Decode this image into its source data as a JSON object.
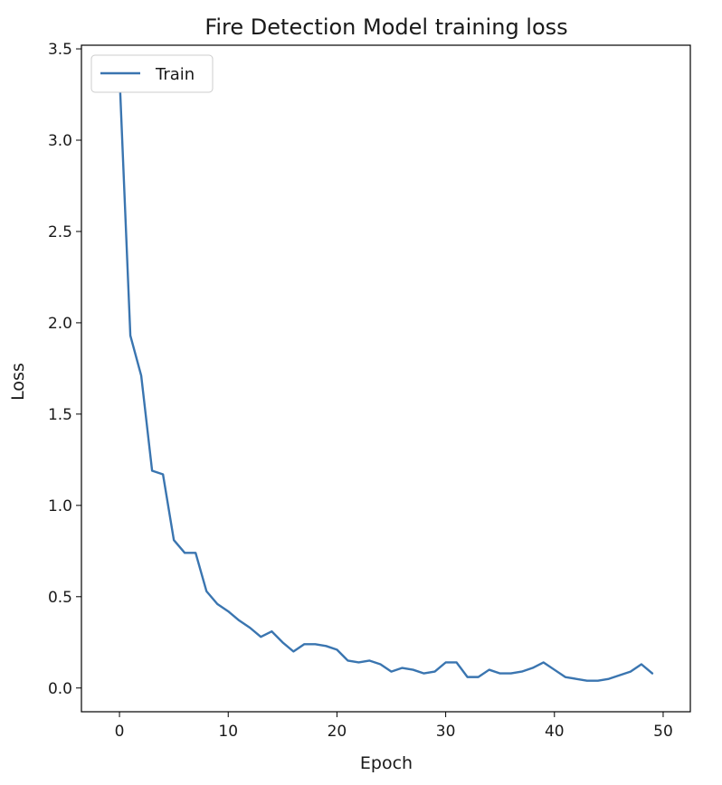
{
  "chart_data": {
    "type": "line",
    "title": "Fire Detection Model training loss",
    "xlabel": "Epoch",
    "ylabel": "Loss",
    "xlim": [
      -3.5,
      52.5
    ],
    "ylim": [
      -0.13,
      3.52
    ],
    "xticks": [
      0,
      10,
      20,
      30,
      40,
      50
    ],
    "yticks": [
      0.0,
      0.5,
      1.0,
      1.5,
      2.0,
      2.5,
      3.0,
      3.5
    ],
    "xtick_labels": [
      "0",
      "10",
      "20",
      "30",
      "40",
      "50"
    ],
    "ytick_labels": [
      "0.0",
      "0.5",
      "1.0",
      "1.5",
      "2.0",
      "2.5",
      "3.0",
      "3.5"
    ],
    "grid": false,
    "legend_position": "upper-left",
    "series": [
      {
        "name": "Train",
        "color": "#3a75b0",
        "x": [
          0,
          1,
          2,
          3,
          4,
          5,
          6,
          7,
          8,
          9,
          10,
          11,
          12,
          13,
          14,
          15,
          16,
          17,
          18,
          19,
          20,
          21,
          22,
          23,
          24,
          25,
          26,
          27,
          28,
          29,
          30,
          31,
          32,
          33,
          34,
          35,
          36,
          37,
          38,
          39,
          40,
          41,
          42,
          43,
          44,
          45,
          46,
          47,
          48,
          49
        ],
        "values": [
          3.36,
          1.93,
          1.71,
          1.19,
          1.17,
          0.81,
          0.74,
          0.74,
          0.53,
          0.46,
          0.42,
          0.37,
          0.33,
          0.28,
          0.31,
          0.25,
          0.2,
          0.24,
          0.24,
          0.23,
          0.21,
          0.15,
          0.14,
          0.15,
          0.13,
          0.09,
          0.11,
          0.1,
          0.08,
          0.09,
          0.14,
          0.14,
          0.06,
          0.06,
          0.1,
          0.08,
          0.08,
          0.09,
          0.11,
          0.14,
          0.1,
          0.06,
          0.05,
          0.04,
          0.04,
          0.05,
          0.07,
          0.09,
          0.13,
          0.08
        ]
      }
    ]
  }
}
